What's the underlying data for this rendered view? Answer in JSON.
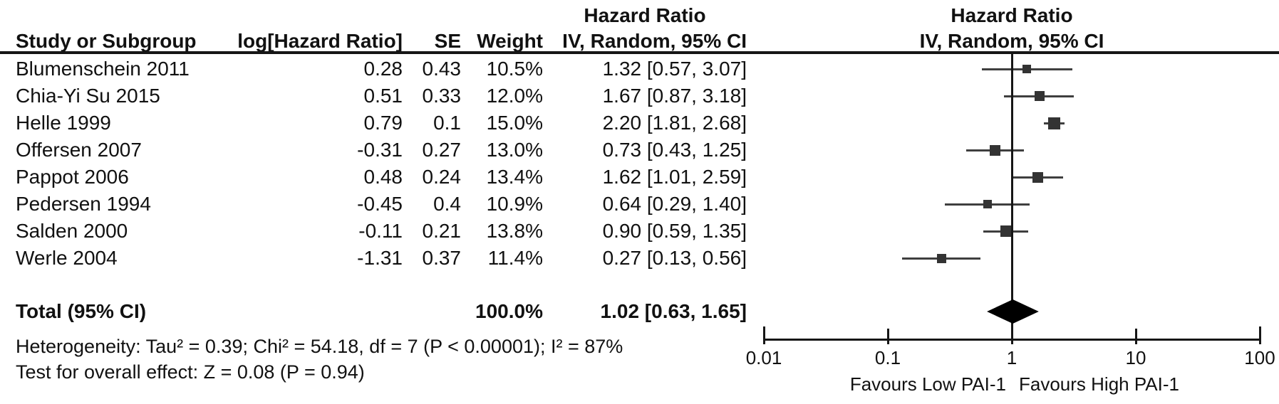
{
  "header": {
    "hazard_ratio_left": "Hazard Ratio",
    "hazard_ratio_right": "Hazard Ratio",
    "col_study": "Study or Subgroup",
    "col_loghr": "log[Hazard Ratio]",
    "col_se": "SE",
    "col_weight": "Weight",
    "col_ci_left": "IV, Random, 95% CI",
    "col_ci_right": "IV, Random, 95% CI"
  },
  "total_row": {
    "label": "Total (95% CI)",
    "weight_text": "100.0%",
    "ci_text": "1.02 [0.63, 1.65]"
  },
  "footer": {
    "heterogeneity": "Heterogeneity: Tau² = 0.39; Chi² = 54.18, df = 7 (P < 0.00001); I² = 87%",
    "overall_effect": "Test for overall effect: Z = 0.08 (P = 0.94)"
  },
  "axis": {
    "favours_left": "Favours Low PAI-1",
    "favours_right": "Favours High PAI-1"
  },
  "chart_data": {
    "type": "forest",
    "title": "Hazard Ratio, IV, Random, 95% CI",
    "x_scale": "log10",
    "x_ticks": [
      0.01,
      0.1,
      1,
      10,
      100
    ],
    "x_tick_labels": [
      "0.01",
      "0.1",
      "1",
      "10",
      "100"
    ],
    "xlim": [
      0.01,
      100
    ],
    "null_line": 1,
    "studies": [
      {
        "name": "Blumenschein 2011",
        "loghr_text": "0.28",
        "se_text": "0.43",
        "weight_text": "10.5%",
        "ci_text": "1.32 [0.57, 3.07]",
        "weight_pct": 10.5,
        "hr": 1.32,
        "ci_low": 0.57,
        "ci_high": 3.07
      },
      {
        "name": "Chia-Yi Su 2015",
        "loghr_text": "0.51",
        "se_text": "0.33",
        "weight_text": "12.0%",
        "ci_text": "1.67 [0.87, 3.18]",
        "weight_pct": 12.0,
        "hr": 1.67,
        "ci_low": 0.87,
        "ci_high": 3.18
      },
      {
        "name": "Helle 1999",
        "loghr_text": "0.79",
        "se_text": "0.1",
        "weight_text": "15.0%",
        "ci_text": "2.20 [1.81, 2.68]",
        "weight_pct": 15.0,
        "hr": 2.2,
        "ci_low": 1.81,
        "ci_high": 2.68
      },
      {
        "name": "Offersen 2007",
        "loghr_text": "-0.31",
        "se_text": "0.27",
        "weight_text": "13.0%",
        "ci_text": "0.73 [0.43, 1.25]",
        "weight_pct": 13.0,
        "hr": 0.73,
        "ci_low": 0.43,
        "ci_high": 1.25
      },
      {
        "name": "Pappot 2006",
        "loghr_text": "0.48",
        "se_text": "0.24",
        "weight_text": "13.4%",
        "ci_text": "1.62 [1.01, 2.59]",
        "weight_pct": 13.4,
        "hr": 1.62,
        "ci_low": 1.01,
        "ci_high": 2.59
      },
      {
        "name": "Pedersen 1994",
        "loghr_text": "-0.45",
        "se_text": "0.4",
        "weight_text": "10.9%",
        "ci_text": "0.64 [0.29, 1.40]",
        "weight_pct": 10.9,
        "hr": 0.64,
        "ci_low": 0.29,
        "ci_high": 1.4
      },
      {
        "name": "Salden 2000",
        "loghr_text": "-0.11",
        "se_text": "0.21",
        "weight_text": "13.8%",
        "ci_text": "0.90 [0.59, 1.35]",
        "weight_pct": 13.8,
        "hr": 0.9,
        "ci_low": 0.59,
        "ci_high": 1.35
      },
      {
        "name": "Werle 2004",
        "loghr_text": "-1.31",
        "se_text": "0.37",
        "weight_text": "11.4%",
        "ci_text": "0.27 [0.13, 0.56]",
        "weight_pct": 11.4,
        "hr": 0.27,
        "ci_low": 0.13,
        "ci_high": 0.56
      }
    ],
    "total": {
      "hr": 1.02,
      "ci_low": 0.63,
      "ci_high": 1.65,
      "weight_pct": 100.0
    },
    "heterogeneity": {
      "tau2": 0.39,
      "chi2": 54.18,
      "df": 7,
      "p": "< 0.00001",
      "i2_pct": 87
    },
    "overall_effect": {
      "z": 0.08,
      "p": 0.94
    },
    "axis_direction_labels": {
      "left": "Favours Low PAI-1",
      "right": "Favours High PAI-1"
    }
  }
}
